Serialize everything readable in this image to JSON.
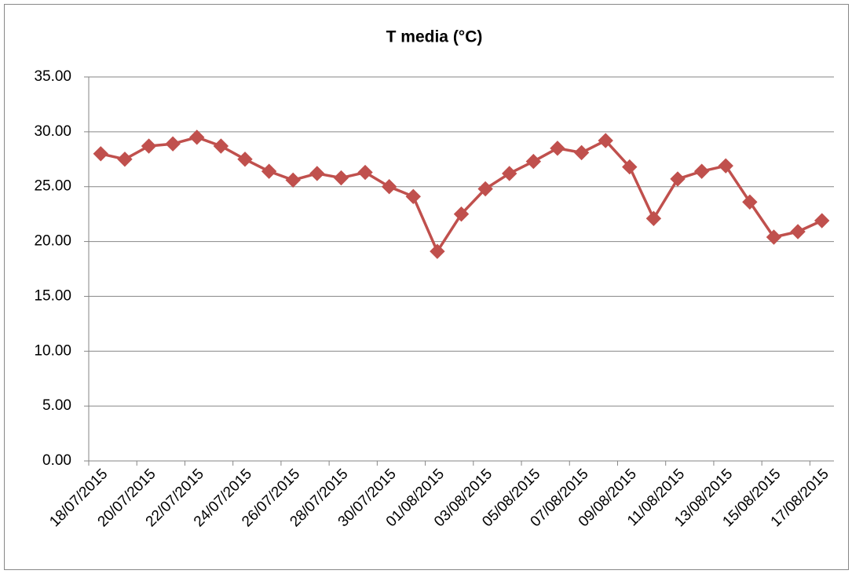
{
  "chart_data": {
    "type": "line",
    "title": "T media (°C)",
    "categories": [
      "18/07/2015",
      null,
      "20/07/2015",
      null,
      "22/07/2015",
      null,
      "24/07/2015",
      null,
      "26/07/2015",
      null,
      "28/07/2015",
      null,
      "30/07/2015",
      null,
      "01/08/2015",
      null,
      "03/08/2015",
      null,
      "05/08/2015",
      null,
      "07/08/2015",
      null,
      "09/08/2015",
      null,
      "11/08/2015",
      null,
      "13/08/2015",
      null,
      "15/08/2015",
      null,
      "17/08/2015"
    ],
    "series": [
      {
        "color": "#c0504d",
        "values": [
          28.0,
          27.5,
          28.7,
          28.9,
          29.5,
          28.7,
          27.5,
          26.4,
          25.6,
          26.2,
          25.8,
          26.3,
          25.0,
          24.1,
          19.1,
          22.5,
          24.8,
          26.2,
          27.3,
          28.5,
          28.1,
          29.2,
          26.8,
          22.1,
          25.7,
          26.4,
          26.9,
          23.6,
          20.4,
          20.9,
          21.9
        ]
      }
    ],
    "ylim": [
      0,
      35
    ],
    "yticks": [
      {
        "value": 0,
        "label": "0.00"
      },
      {
        "value": 5,
        "label": "5.00"
      },
      {
        "value": 10,
        "label": "10.00"
      },
      {
        "value": 15,
        "label": "15.00"
      },
      {
        "value": 20,
        "label": "20.00"
      },
      {
        "value": 25,
        "label": "25.00"
      },
      {
        "value": 30,
        "label": "30.00"
      },
      {
        "value": 35,
        "label": "35.00"
      }
    ],
    "grid": true
  }
}
